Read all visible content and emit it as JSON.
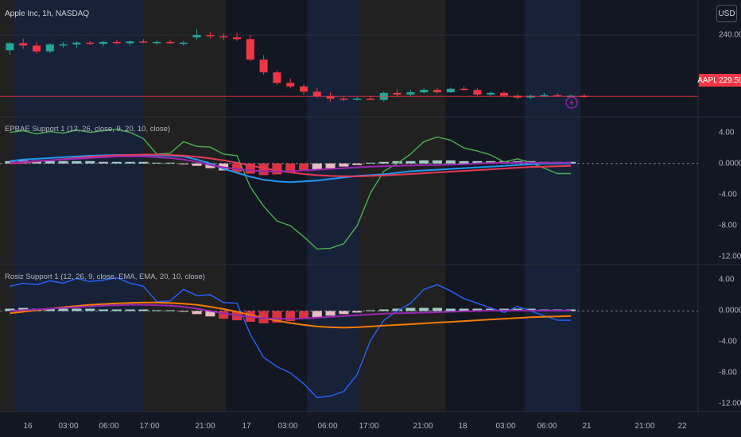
{
  "header": {
    "title": "Apple Inc, 1h, NASDAQ"
  },
  "currency_button": {
    "label": "USD"
  },
  "last_price": {
    "symbol": "AAPL",
    "value": "229.50"
  },
  "indicator1": {
    "title": "EPBAE Support 1 (12, 26, close, 9, 20, 10, close)"
  },
  "indicator2": {
    "title": "Rosiz Support 1 (12, 26, 9, close, EMA, EMA, 20, 10, close)"
  },
  "price_axis": {
    "ticks": [
      "240.00"
    ]
  },
  "ind1_axis": {
    "ticks": [
      "4.00",
      "0.0000",
      "-4.00",
      "-8.00",
      "-12.00"
    ]
  },
  "ind2_axis": {
    "ticks": [
      "4.00",
      "0.0000",
      "-4.00",
      "-8.00",
      "-12.00"
    ]
  },
  "time_axis": {
    "ticks": [
      "16",
      "03:00",
      "06:00",
      "17:00",
      "21:00",
      "17",
      "03:00",
      "06:00",
      "17:00",
      "21:00",
      "18",
      "03:00",
      "06:00",
      "21",
      "21:00",
      "22"
    ]
  },
  "colors": {
    "background": "#131722",
    "up": "#26a69a",
    "down": "#f23645",
    "session_blue": "#1c2a4a",
    "session_tan": "#2e2a22",
    "green_line": "#4caf50",
    "blue_line": "#2962ff",
    "orange_line": "#f57c00",
    "red_line": "#e53956",
    "sky_line": "#2196f3",
    "purple_line": "#9c27b0"
  },
  "chart_data": [
    {
      "type": "candlestick",
      "title": "",
      "ylim": [
        226,
        246
      ],
      "bars": [
        [
          237.4,
          238.8,
          236.6,
          238.6
        ],
        [
          238.6,
          239.4,
          237.6,
          238.2
        ],
        [
          238.2,
          238.8,
          236.8,
          237.2
        ],
        [
          237.2,
          238.6,
          236.9,
          238.4
        ],
        [
          238.4,
          238.8,
          237.8,
          238.4
        ],
        [
          238.4,
          238.9,
          237.8,
          238.7
        ],
        [
          238.7,
          239.0,
          238.3,
          238.5
        ],
        [
          238.5,
          239.0,
          238.1,
          238.8
        ],
        [
          238.8,
          239.2,
          238.4,
          238.6
        ],
        [
          238.6,
          239.1,
          238.2,
          238.9
        ],
        [
          238.9,
          239.3,
          238.6,
          238.7
        ],
        [
          238.7,
          239.1,
          238.4,
          238.8
        ],
        [
          238.8,
          239.2,
          238.5,
          238.6
        ],
        [
          238.6,
          239.0,
          238.2,
          238.7
        ],
        [
          239.6,
          241.0,
          239.2,
          240.0
        ],
        [
          240.0,
          240.6,
          239.4,
          239.8
        ],
        [
          239.8,
          240.3,
          239.1,
          239.6
        ],
        [
          239.6,
          240.4,
          239.0,
          239.3
        ],
        [
          239.3,
          240.0,
          235.5,
          235.8
        ],
        [
          235.8,
          236.6,
          233.2,
          233.6
        ],
        [
          233.6,
          234.0,
          231.4,
          231.8
        ],
        [
          231.8,
          232.6,
          230.9,
          231.2
        ],
        [
          231.2,
          231.6,
          229.8,
          230.3
        ],
        [
          230.3,
          230.9,
          229.2,
          229.5
        ],
        [
          229.5,
          230.2,
          228.6,
          229.1
        ],
        [
          229.1,
          229.6,
          228.7,
          229.0
        ],
        [
          229.0,
          229.4,
          228.8,
          229.1
        ],
        [
          229.1,
          229.5,
          228.9,
          229.0
        ],
        [
          228.9,
          230.3,
          228.6,
          230.1
        ],
        [
          230.1,
          230.6,
          229.4,
          229.8
        ],
        [
          229.8,
          230.6,
          229.6,
          230.2
        ],
        [
          230.2,
          230.9,
          230.0,
          230.6
        ],
        [
          230.6,
          231.0,
          230.0,
          230.2
        ],
        [
          230.2,
          231.0,
          230.1,
          230.8
        ],
        [
          230.8,
          231.2,
          230.4,
          230.6
        ],
        [
          230.6,
          230.9,
          229.6,
          229.8
        ],
        [
          229.8,
          230.3,
          229.6,
          230.1
        ],
        [
          230.1,
          230.4,
          229.4,
          229.6
        ],
        [
          229.6,
          229.9,
          229.0,
          229.3
        ],
        [
          229.3,
          229.8,
          229.0,
          229.6
        ],
        [
          229.6,
          230.1,
          229.4,
          229.7
        ],
        [
          229.7,
          230.0,
          229.4,
          229.5
        ],
        [
          229.5,
          229.8,
          229.3,
          229.6
        ],
        [
          229.6,
          229.9,
          229.2,
          229.4
        ]
      ]
    },
    {
      "type": "line",
      "title": "EPBAE Support 1 (12, 26, close, 9, 20, 10, close)",
      "ylim": [
        -13,
        6
      ],
      "series": [
        {
          "color": "#4caf50",
          "values": [
            4.0,
            4.2,
            3.8,
            4.1,
            3.9,
            4.3,
            4.0,
            4.2,
            4.4,
            4.0,
            3.2,
            1.2,
            1.3,
            2.8,
            2.2,
            2.1,
            1.2,
            1.0,
            -3.0,
            -5.5,
            -7.4,
            -8.0,
            -9.4,
            -11.0,
            -10.9,
            -10.3,
            -8.0,
            -3.8,
            -1.0,
            0.0,
            1.2,
            2.8,
            3.4,
            3.0,
            2.0,
            1.6,
            1.1,
            0.2,
            0.6,
            0.1,
            -0.6,
            -1.3,
            -1.3
          ]
        },
        {
          "color": "#2196f3",
          "values": [
            0.3,
            0.5,
            0.6,
            0.7,
            0.8,
            0.9,
            1.0,
            1.05,
            1.1,
            1.1,
            1.1,
            1.05,
            1.0,
            0.9,
            0.5,
            0.0,
            -0.7,
            -1.2,
            -1.7,
            -2.1,
            -2.3,
            -2.4,
            -2.3,
            -2.2,
            -2.0,
            -1.8,
            -1.6,
            -1.5,
            -1.4,
            -1.2,
            -1.0,
            -0.9,
            -0.8,
            -0.7,
            -0.6,
            -0.5,
            -0.4,
            -0.3,
            -0.2,
            -0.1,
            0.0,
            0.0,
            0.0
          ]
        },
        {
          "color": "#e53956",
          "values": [
            0.0,
            0.1,
            0.25,
            0.4,
            0.55,
            0.7,
            0.85,
            0.95,
            1.05,
            1.1,
            1.15,
            1.15,
            1.1,
            1.0,
            0.85,
            0.65,
            0.4,
            0.1,
            -0.25,
            -0.6,
            -0.9,
            -1.15,
            -1.35,
            -1.5,
            -1.6,
            -1.65,
            -1.65,
            -1.6,
            -1.55,
            -1.45,
            -1.35,
            -1.25,
            -1.15,
            -1.05,
            -0.95,
            -0.85,
            -0.75,
            -0.65,
            -0.55,
            -0.45,
            -0.4,
            -0.35,
            -0.3
          ]
        },
        {
          "color": "#9c27b0",
          "values": [
            0.1,
            0.2,
            0.3,
            0.4,
            0.5,
            0.6,
            0.7,
            0.8,
            0.9,
            0.9,
            0.9,
            0.8,
            0.7,
            0.5,
            0.2,
            -0.2,
            -0.5,
            -0.7,
            -0.9,
            -1.0,
            -1.05,
            -1.0,
            -0.9,
            -0.8,
            -0.7,
            -0.6,
            -0.5,
            -0.4,
            -0.35,
            -0.3,
            -0.25,
            -0.2,
            -0.2,
            -0.15,
            -0.1,
            0.0,
            0.05,
            0.1,
            0.1,
            0.1,
            0.1,
            0.1,
            0.1
          ]
        }
      ],
      "histogram": [
        0.3,
        0.4,
        0.4,
        0.3,
        0.3,
        0.3,
        0.3,
        0.2,
        0.2,
        0.2,
        0.2,
        0.1,
        0.1,
        -0.1,
        -0.3,
        -0.6,
        -0.9,
        -1.1,
        -1.3,
        -1.5,
        -1.4,
        -1.2,
        -1.0,
        -0.8,
        -0.6,
        -0.4,
        -0.2,
        0.1,
        0.2,
        0.3,
        0.3,
        0.4,
        0.4,
        0.4,
        0.3,
        0.3,
        0.3,
        0.3,
        0.3,
        0.3,
        0.2,
        0.2,
        0.2
      ]
    },
    {
      "type": "line",
      "title": "Rosiz Support 1 (12, 26, 9, close, EMA, EMA, 20, 10, close)",
      "ylim": [
        -13,
        6
      ],
      "series": [
        {
          "color": "#2962ff",
          "values": [
            3.2,
            3.6,
            3.4,
            3.9,
            3.6,
            4.2,
            3.8,
            4.0,
            4.3,
            3.6,
            3.2,
            1.2,
            1.3,
            2.8,
            2.0,
            2.1,
            1.1,
            1.0,
            -3.0,
            -6.0,
            -7.2,
            -8.0,
            -9.4,
            -11.2,
            -11.0,
            -10.4,
            -8.2,
            -3.8,
            -1.2,
            0.0,
            1.0,
            2.8,
            3.4,
            2.6,
            1.6,
            1.0,
            0.4,
            -0.2,
            0.6,
            0.0,
            -0.6,
            -1.2,
            -1.2
          ]
        },
        {
          "color": "#f57c00",
          "values": [
            -0.3,
            -0.1,
            0.1,
            0.3,
            0.5,
            0.65,
            0.8,
            0.9,
            1.0,
            1.05,
            1.1,
            1.1,
            1.05,
            0.95,
            0.8,
            0.55,
            0.25,
            -0.1,
            -0.5,
            -0.9,
            -1.25,
            -1.55,
            -1.8,
            -2.0,
            -2.1,
            -2.15,
            -2.1,
            -2.0,
            -1.9,
            -1.8,
            -1.7,
            -1.6,
            -1.5,
            -1.4,
            -1.3,
            -1.2,
            -1.1,
            -1.0,
            -0.9,
            -0.8,
            -0.75,
            -0.7,
            -0.65
          ]
        },
        {
          "color": "#9c27b0",
          "values": [
            0.0,
            0.1,
            0.2,
            0.3,
            0.4,
            0.5,
            0.6,
            0.7,
            0.75,
            0.8,
            0.8,
            0.75,
            0.7,
            0.55,
            0.3,
            0.0,
            -0.3,
            -0.55,
            -0.75,
            -0.9,
            -1.0,
            -1.0,
            -0.95,
            -0.85,
            -0.75,
            -0.65,
            -0.55,
            -0.45,
            -0.35,
            -0.3,
            -0.25,
            -0.2,
            -0.15,
            -0.1,
            -0.05,
            0.0,
            0.05,
            0.05,
            0.05,
            0.05,
            0.05,
            0.05,
            0.05
          ]
        }
      ],
      "histogram": [
        0.3,
        0.4,
        0.3,
        0.3,
        0.3,
        0.3,
        0.3,
        0.2,
        0.2,
        0.2,
        0.2,
        0.1,
        0.1,
        -0.1,
        -0.4,
        -0.7,
        -1.0,
        -1.2,
        -1.4,
        -1.6,
        -1.5,
        -1.3,
        -1.0,
        -0.8,
        -0.6,
        -0.4,
        -0.2,
        0.1,
        0.2,
        0.3,
        0.4,
        0.4,
        0.4,
        0.3,
        0.3,
        0.3,
        0.3,
        0.3,
        0.3,
        0.3,
        0.2,
        0.2,
        0.2
      ]
    }
  ]
}
